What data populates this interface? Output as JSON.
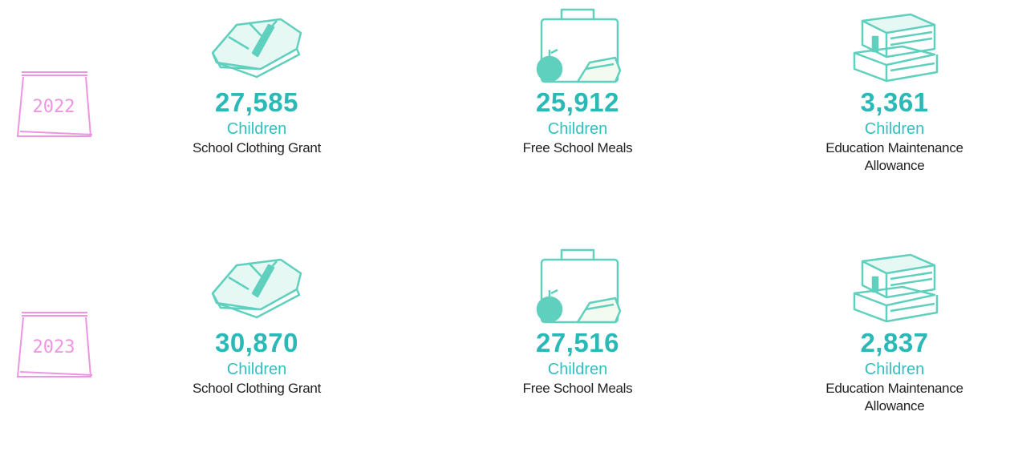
{
  "rows": [
    {
      "year": "2022",
      "items": [
        {
          "value": "27,585",
          "unit": "Children",
          "label": "School Clothing Grant"
        },
        {
          "value": "25,912",
          "unit": "Children",
          "label": "Free School Meals"
        },
        {
          "value": "3,361",
          "unit": "Children",
          "label": "Education Maintenance Allowance"
        }
      ]
    },
    {
      "year": "2023",
      "items": [
        {
          "value": "30,870",
          "unit": "Children",
          "label": "School Clothing Grant"
        },
        {
          "value": "27,516",
          "unit": "Children",
          "label": "Free School Meals"
        },
        {
          "value": "2,837",
          "unit": "Children",
          "label": "Education Maintenance Allowance"
        }
      ]
    }
  ]
}
